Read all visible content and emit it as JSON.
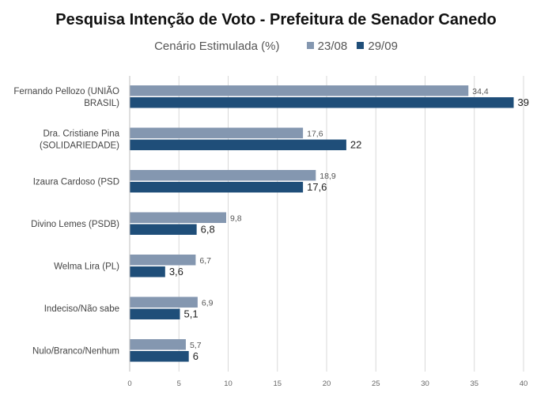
{
  "chart_data": {
    "type": "bar",
    "orientation": "horizontal",
    "title": "Pesquisa Intenção de Voto - Prefeitura de Senador Canedo",
    "subtitle": "Cenário Estimulada (%)",
    "categories": [
      [
        "Fernando Pellozo (UNIÃO",
        "BRASIL)"
      ],
      [
        "Dra. Cristiane Pina",
        "(SOLIDARIEDADE)"
      ],
      [
        "Izaura Cardoso (PSD"
      ],
      [
        "Divino Lemes (PSDB)"
      ],
      [
        "Welma Lira (PL)"
      ],
      [
        "Indeciso/Não sabe"
      ],
      [
        "Nulo/Branco/Nenhum"
      ]
    ],
    "series": [
      {
        "name": "23/08",
        "color": "#8497b0",
        "values": [
          34.4,
          17.6,
          18.9,
          9.8,
          6.7,
          6.9,
          5.7
        ],
        "labels": [
          "34,4",
          "17,6",
          "18,9",
          "9,8",
          "6,7",
          "6,9",
          "5,7"
        ]
      },
      {
        "name": "29/09",
        "color": "#1f4e79",
        "values": [
          39,
          22,
          17.6,
          6.8,
          3.6,
          5.1,
          6
        ],
        "labels": [
          "39",
          "22",
          "17,6",
          "6,8",
          "3,6",
          "5,1",
          "6"
        ]
      }
    ],
    "xlim": [
      0,
      40
    ],
    "xticks": [
      0,
      5,
      10,
      15,
      20,
      25,
      30,
      35,
      40
    ],
    "grid": true,
    "legend": "top"
  }
}
